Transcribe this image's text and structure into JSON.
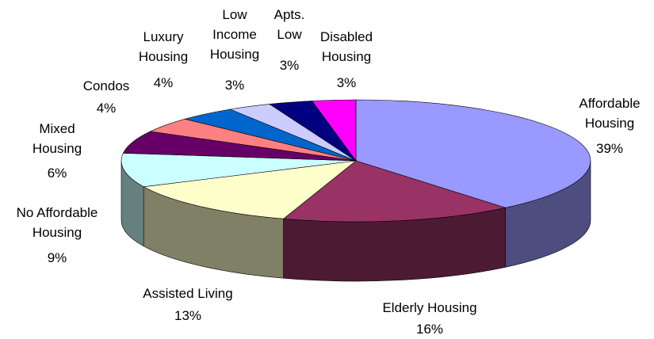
{
  "chart_data": {
    "type": "pie3d",
    "categories": [
      "Affordable Housing",
      "Elderly Housing",
      "Assisted Living",
      "No Affordable Housing",
      "Mixed Housing",
      "Condos",
      "Luxury Housing",
      "Low Income Housing",
      "Apts. Low",
      "Disabled Housing"
    ],
    "values": [
      39,
      16,
      13,
      9,
      6,
      4,
      4,
      3,
      3,
      3
    ],
    "value_labels": [
      "39%",
      "16%",
      "13%",
      "9%",
      "6%",
      "4%",
      "4%",
      "3%",
      "3%",
      "3%"
    ],
    "colors": [
      "#9999ff",
      "#993366",
      "#ffffcc",
      "#ccffff",
      "#660066",
      "#ff8080",
      "#0066cc",
      "#ccccff",
      "#000080",
      "#ff00ff"
    ]
  }
}
